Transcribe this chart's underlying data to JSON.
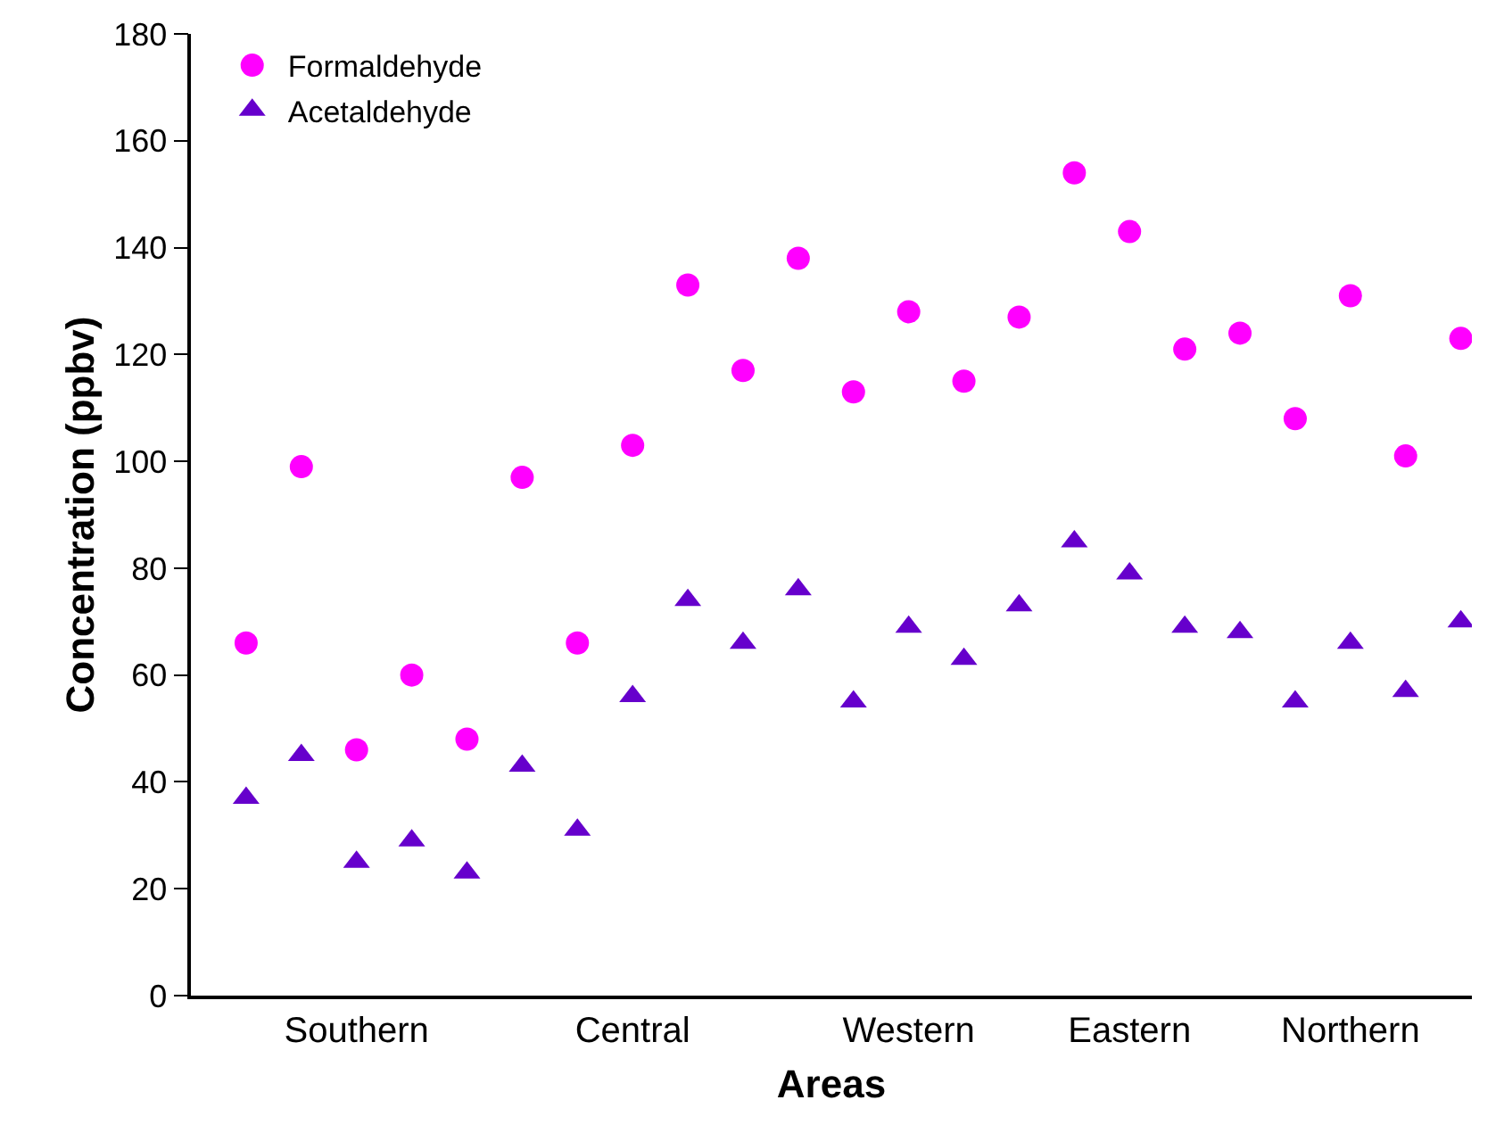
{
  "chart_data": {
    "type": "scatter",
    "xlabel": "Areas",
    "ylabel": "Concentration (ppbv)",
    "categories": [
      null,
      null,
      "Southern",
      null,
      null,
      null,
      null,
      "Central",
      null,
      null,
      null,
      null,
      "Western",
      null,
      null,
      null,
      "Eastern",
      null,
      null,
      null,
      "Northern",
      null,
      null
    ],
    "series": [
      {
        "name": "Formaldehyde",
        "color": "#ff00ff",
        "marker": "circle",
        "values": [
          66,
          99,
          46,
          60,
          48,
          97,
          66,
          103,
          133,
          117,
          138,
          113,
          128,
          115,
          127,
          154,
          143,
          121,
          124,
          108,
          131,
          101,
          123
        ]
      },
      {
        "name": "Acetaldehyde",
        "color": "#6600cc",
        "marker": "triangle",
        "values": [
          37,
          45,
          25,
          29,
          23,
          43,
          31,
          56,
          74,
          66,
          76,
          55,
          69,
          63,
          73,
          85,
          79,
          69,
          68,
          55,
          66,
          57,
          70
        ]
      }
    ],
    "ylim": [
      0,
      180
    ],
    "yticks": [
      0,
      20,
      40,
      60,
      80,
      100,
      120,
      140,
      160,
      180
    ],
    "grid": false,
    "legend": "top left"
  }
}
